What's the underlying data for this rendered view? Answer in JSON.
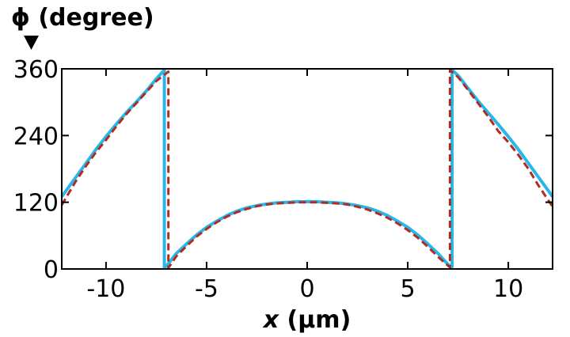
{
  "chart_data": {
    "type": "line",
    "title": "",
    "ylabel": "ϕ (degree)",
    "xlabel_var": "x",
    "xlabel_unit": " (µm)",
    "xlim": [
      -12.2,
      12.2
    ],
    "ylim": [
      0,
      360
    ],
    "xticks": [
      -10,
      -5,
      0,
      5,
      10
    ],
    "xtick_labels": [
      "-10",
      "-5",
      "0",
      "5",
      "10"
    ],
    "yticks": [
      0,
      120,
      240,
      360
    ],
    "ytick_labels": [
      "0",
      "120",
      "240",
      "360"
    ],
    "grid": false,
    "legend": "none",
    "series": [
      {
        "style": "solid",
        "color": "#29b6e8",
        "x": [
          -12.2,
          -11.5,
          -11,
          -10.5,
          -10,
          -9.5,
          -9,
          -8.5,
          -8,
          -7.5,
          -7.1,
          -7.1,
          -7,
          -6.5,
          -6,
          -5.5,
          -5,
          -4.5,
          -4,
          -3.5,
          -3,
          -2.5,
          -2,
          -1.5,
          -1,
          -0.5,
          0,
          0.5,
          1,
          1.5,
          2,
          2.5,
          3,
          3.5,
          4,
          4.5,
          5,
          5.5,
          6,
          6.5,
          7,
          7.2,
          7.2,
          7.5,
          8,
          8.5,
          9,
          9.5,
          10,
          10.5,
          11,
          11.5,
          12.2
        ],
        "y": [
          130,
          165,
          190,
          215,
          238,
          260,
          281,
          300,
          320,
          342,
          358,
          3,
          5,
          28,
          45,
          61,
          75,
          86,
          96,
          104,
          110,
          114,
          117,
          119,
          120,
          121,
          121,
          121,
          120,
          119,
          117,
          114,
          110,
          104,
          96,
          86,
          75,
          61,
          45,
          28,
          8,
          4,
          358,
          348,
          325,
          302,
          281,
          260,
          238,
          215,
          190,
          165,
          130
        ]
      },
      {
        "style": "dashed",
        "color": "#b22a22",
        "x": [
          -12.2,
          -11.5,
          -11,
          -10.5,
          -10,
          -9.5,
          -9,
          -8.5,
          -8,
          -7.5,
          -7,
          -6.9,
          -6.9,
          -6.5,
          -6,
          -5.5,
          -5,
          -4.5,
          -4,
          -3.5,
          -3,
          -2.5,
          -2,
          -1.5,
          -1,
          -0.5,
          0,
          0.5,
          1,
          1.5,
          2,
          2.5,
          3,
          3.5,
          4,
          4.5,
          5,
          5.5,
          6,
          6.5,
          7,
          7.1,
          7.1,
          7.5,
          8,
          8.5,
          9,
          9.5,
          10,
          10.5,
          11,
          11.5,
          12.2
        ],
        "y": [
          115,
          158,
          185,
          210,
          232,
          256,
          278,
          298,
          318,
          338,
          352,
          355,
          2,
          23,
          41,
          58,
          72,
          84,
          94,
          102,
          108,
          113,
          116,
          118,
          119,
          120,
          120,
          120,
          119,
          118,
          116,
          112,
          107,
          100,
          92,
          82,
          70,
          56,
          40,
          22,
          6,
          3,
          358,
          345,
          322,
          298,
          274,
          248,
          228,
          205,
          180,
          150,
          112
        ]
      }
    ]
  }
}
